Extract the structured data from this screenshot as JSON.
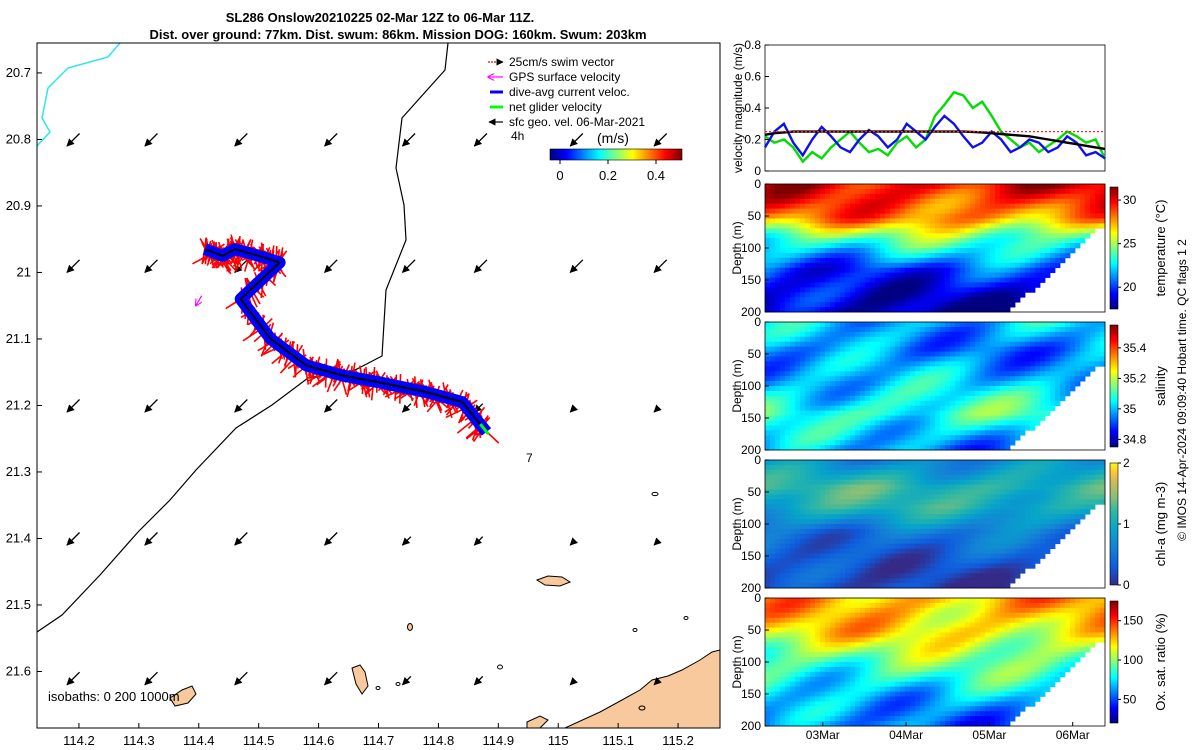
{
  "title": {
    "line1": "SL286 Onslow20210225 02-Mar 12Z to 06-Mar 11Z.",
    "line2": "Dist. over ground: 77km. Dist. swum: 86km. Mission DOG: 160km. Swum: 203km"
  },
  "credit": "© IMOS 14-Apr-2024 09:09:40 Hobart time. QC flags 1  2",
  "chart_data": [
    {
      "type": "map",
      "xlim": [
        114.13,
        115.27
      ],
      "ylim": [
        -21.685,
        -20.655
      ],
      "xticks": [
        "114.2",
        "114.3",
        "114.4",
        "114.5",
        "114.6",
        "114.7",
        "114.8",
        "114.9",
        "115",
        "115.1",
        "115.2"
      ],
      "yticks": [
        "20.7",
        "20.8",
        "20.9",
        "21",
        "21.1",
        "21.2",
        "21.3",
        "21.4",
        "21.5",
        "21.6"
      ],
      "legend": {
        "position": "top-right",
        "entries": [
          {
            "label": "25cm/s swim vector",
            "color": "#ff0000"
          },
          {
            "label": "GPS surface velocity",
            "color": "#ff00ff"
          },
          {
            "label": "dive-avg current veloc.",
            "color": "#0000ff"
          },
          {
            "label": "net glider velocity",
            "color": "#00ff00"
          },
          {
            "label": "sfc geo. vel. 06-Mar-2021",
            "color": "#000000"
          }
        ]
      },
      "scale_label": "4h",
      "colorbar": {
        "label": "(m/s)",
        "ticks": [
          "0",
          "0.2",
          "0.4"
        ]
      },
      "isobaths_label": "isobaths: 0   200  1000m",
      "annotation": "7",
      "track": [
        [
          114.41,
          -20.965
        ],
        [
          114.44,
          -20.975
        ],
        [
          114.46,
          -20.965
        ],
        [
          114.5,
          -20.975
        ],
        [
          114.535,
          -20.985
        ],
        [
          114.47,
          -21.04
        ],
        [
          114.52,
          -21.1
        ],
        [
          114.58,
          -21.14
        ],
        [
          114.64,
          -21.155
        ],
        [
          114.7,
          -21.165
        ],
        [
          114.78,
          -21.18
        ],
        [
          114.84,
          -21.195
        ],
        [
          114.88,
          -21.24
        ]
      ],
      "current_arrows_row_lats": [
        -20.81,
        -21.0,
        -21.21,
        -21.41,
        -21.62
      ],
      "current_arrows_col_lons": [
        114.18,
        114.31,
        114.46,
        114.61,
        114.74,
        114.86,
        115.02,
        115.16
      ]
    },
    {
      "type": "line",
      "ylabel": "velocity magnitude (m/s)",
      "ylim": [
        0,
        0.8
      ],
      "yticks": [
        "0",
        "0.2",
        "0.4",
        "0.6",
        "0.8"
      ],
      "x_range_days": [
        "02-Mar 12Z",
        "06-Mar 11Z"
      ],
      "series": [
        {
          "color": "#00dd00",
          "values": [
            0.22,
            0.18,
            0.2,
            0.15,
            0.06,
            0.12,
            0.08,
            0.15,
            0.2,
            0.25,
            0.18,
            0.12,
            0.14,
            0.1,
            0.18,
            0.22,
            0.15,
            0.2,
            0.35,
            0.42,
            0.5,
            0.48,
            0.4,
            0.44,
            0.35,
            0.25,
            0.2,
            0.15,
            0.18,
            0.12,
            0.16,
            0.2,
            0.25,
            0.22,
            0.18,
            0.2,
            0.08
          ]
        },
        {
          "color": "#1010ee",
          "values": [
            0.15,
            0.25,
            0.3,
            0.18,
            0.1,
            0.2,
            0.28,
            0.22,
            0.15,
            0.12,
            0.2,
            0.26,
            0.22,
            0.15,
            0.2,
            0.3,
            0.25,
            0.2,
            0.28,
            0.35,
            0.3,
            0.22,
            0.15,
            0.18,
            0.25,
            0.2,
            0.12,
            0.15,
            0.2,
            0.18,
            0.12,
            0.15,
            0.22,
            0.18,
            0.1,
            0.12,
            0.08
          ]
        },
        {
          "color": "#000000",
          "values": [
            0.23,
            0.24,
            0.245,
            0.25,
            0.25,
            0.25,
            0.25,
            0.25,
            0.25,
            0.25,
            0.25,
            0.25,
            0.25,
            0.25,
            0.25,
            0.25,
            0.25,
            0.25,
            0.25,
            0.25,
            0.25,
            0.25,
            0.248,
            0.245,
            0.24,
            0.235,
            0.23,
            0.225,
            0.22,
            0.21,
            0.2,
            0.19,
            0.18,
            0.17,
            0.16,
            0.15,
            0.14
          ]
        },
        {
          "color": "#ff2222",
          "values": [
            0.25,
            0.25,
            0.25,
            0.25,
            0.25,
            0.25,
            0.25,
            0.25,
            0.25,
            0.25,
            0.25,
            0.25,
            0.25,
            0.25,
            0.25,
            0.25,
            0.25,
            0.25,
            0.25,
            0.25,
            0.25,
            0.25,
            0.25,
            0.25,
            0.25,
            0.25,
            0.25,
            0.25,
            0.25,
            0.25,
            0.25,
            0.25,
            0.25,
            0.25,
            0.25,
            0.25,
            0.25
          ]
        }
      ]
    },
    {
      "type": "heatmap",
      "variable": "temperature",
      "ylabel": "Depth (m)",
      "yticks": [
        "0",
        "50",
        "100",
        "150",
        "200"
      ],
      "colorbar_label": "temperature (°C)",
      "colorbar_ticks": [
        "30",
        "25",
        "20"
      ],
      "clim": [
        17.5,
        31.5
      ],
      "profile": [
        [
          0,
          30
        ],
        [
          50,
          28
        ],
        [
          80,
          24
        ],
        [
          130,
          20
        ],
        [
          200,
          18
        ]
      ]
    },
    {
      "type": "heatmap",
      "variable": "salinity",
      "ylabel": "Depth (m)",
      "yticks": [
        "0",
        "50",
        "100",
        "150",
        "200"
      ],
      "colorbar_label": "salinity",
      "colorbar_ticks": [
        "35.4",
        "35.2",
        "35",
        "34.8"
      ],
      "clim": [
        34.75,
        35.55
      ],
      "profile": [
        [
          0,
          35.0
        ],
        [
          40,
          34.95
        ],
        [
          90,
          35.0
        ],
        [
          140,
          35.1
        ],
        [
          200,
          34.95
        ]
      ]
    },
    {
      "type": "heatmap",
      "variable": "chl-a",
      "ylabel": "Depth (m)",
      "yticks": [
        "0",
        "50",
        "100",
        "150",
        "200"
      ],
      "colorbar_label": "chl-a (mg m-3)",
      "colorbar_ticks": [
        "2",
        "1",
        "0"
      ],
      "clim": [
        0,
        2
      ],
      "profile": [
        [
          0,
          0.6
        ],
        [
          40,
          1.0
        ],
        [
          70,
          0.9
        ],
        [
          110,
          0.4
        ],
        [
          200,
          0.1
        ]
      ]
    },
    {
      "type": "heatmap",
      "variable": "oxygen saturation",
      "ylabel": "Depth (m)",
      "yticks": [
        "0",
        "50",
        "100",
        "150",
        "200"
      ],
      "colorbar_label": "Ox. sat. ratio (%)",
      "colorbar_ticks": [
        "150",
        "100",
        "50"
      ],
      "clim": [
        20,
        175
      ],
      "profile": [
        [
          0,
          130
        ],
        [
          50,
          120
        ],
        [
          90,
          95
        ],
        [
          150,
          70
        ],
        [
          200,
          55
        ]
      ],
      "xticks": [
        "03Mar",
        "04Mar",
        "05Mar",
        "06Mar"
      ]
    }
  ]
}
